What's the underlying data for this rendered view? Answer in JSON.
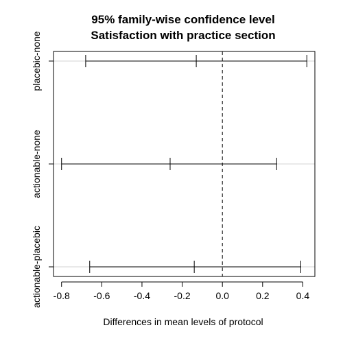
{
  "chart_data": {
    "type": "errorbar",
    "title": "95% family-wise confidence level",
    "subtitle": "Satisfaction with practice section",
    "xlabel": "Differences in mean levels of protocol",
    "ylabel": "",
    "xlim": [
      -0.84,
      0.46
    ],
    "xticks": [
      -0.8,
      -0.6,
      -0.4,
      -0.2,
      0.0,
      0.2,
      0.4
    ],
    "xtick_labels": [
      "-0.8",
      "-0.6",
      "-0.4",
      "-0.2",
      "0.0",
      "0.2",
      "0.4"
    ],
    "reference_line": 0,
    "grid": "horizontal lines at each comparison",
    "series": [
      {
        "label": "placebic-none",
        "diff": -0.13,
        "lwr": -0.68,
        "upr": 0.42
      },
      {
        "label": "actionable-none",
        "diff": -0.26,
        "lwr": -0.8,
        "upr": 0.27
      },
      {
        "label": "actionable-placebic",
        "diff": -0.14,
        "lwr": -0.66,
        "upr": 0.39
      }
    ]
  }
}
